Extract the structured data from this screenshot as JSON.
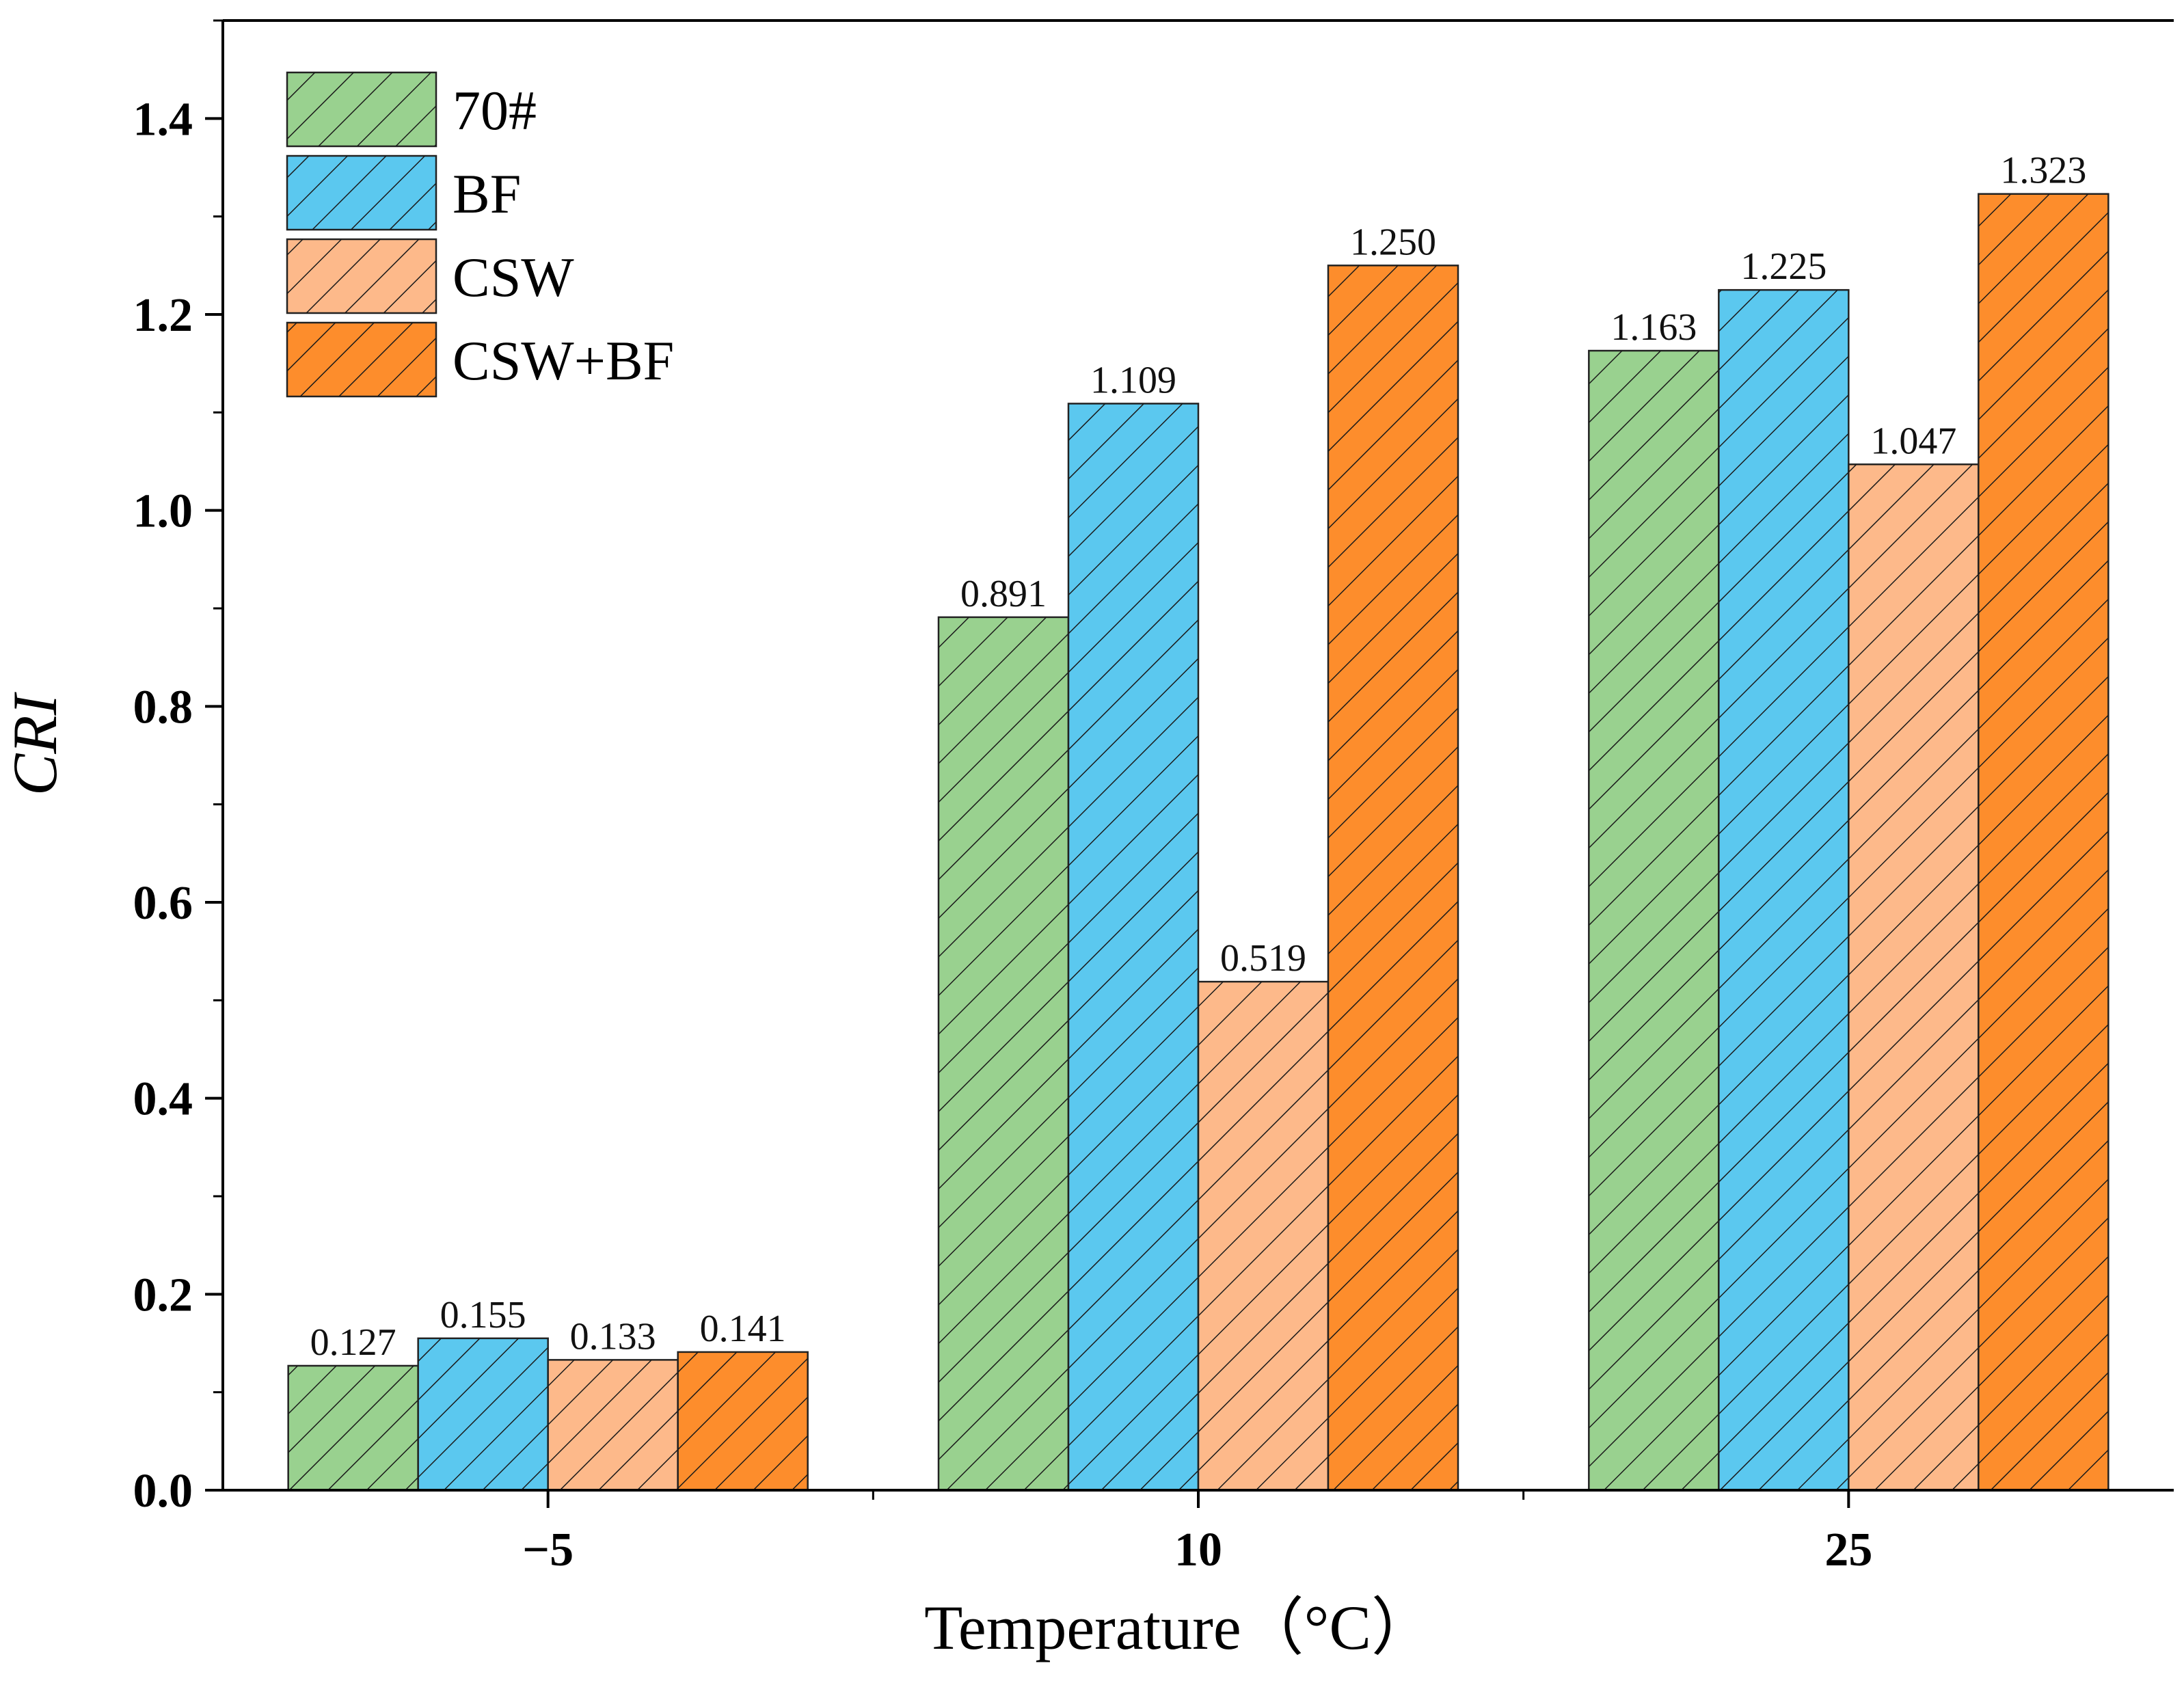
{
  "chart_data": {
    "type": "bar",
    "categories": [
      "−5",
      "10",
      "25"
    ],
    "series": [
      {
        "name": "70#",
        "values": [
          0.127,
          0.891,
          1.163
        ],
        "labels": [
          "0.127",
          "0.891",
          "1.163"
        ],
        "color": "#99d18f"
      },
      {
        "name": "BF",
        "values": [
          0.155,
          1.109,
          1.225
        ],
        "labels": [
          "0.155",
          "1.109",
          "1.225"
        ],
        "color": "#5bc8ef"
      },
      {
        "name": "CSW",
        "values": [
          0.133,
          0.519,
          1.047
        ],
        "labels": [
          "0.133",
          "0.519",
          "1.047"
        ],
        "color": "#fdb98a"
      },
      {
        "name": "CSW+BF",
        "values": [
          0.141,
          1.25,
          1.323
        ],
        "labels": [
          "0.141",
          "1.250",
          "1.323"
        ],
        "color": "#fd8d2c"
      }
    ],
    "title": "",
    "xlabel": "Temperature（°C）",
    "ylabel": "CRI",
    "ylim": [
      0,
      1.5
    ],
    "yticks": [
      "0.0",
      "0.2",
      "0.4",
      "0.6",
      "0.8",
      "1.0",
      "1.2",
      "1.4"
    ],
    "legend_position": "top-left",
    "hatch": "diagonal"
  }
}
